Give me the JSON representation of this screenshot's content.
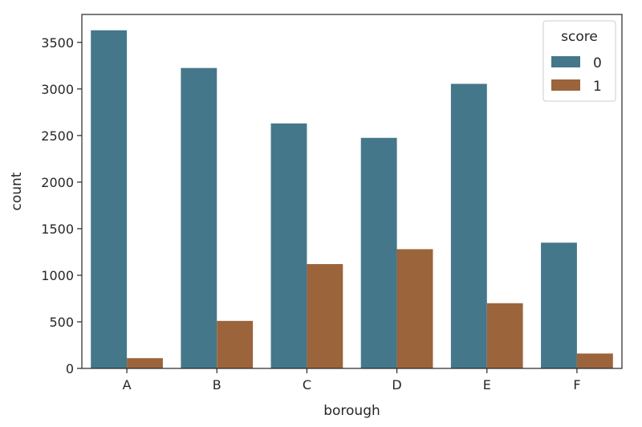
{
  "chart_data": {
    "type": "bar",
    "categories": [
      "A",
      "B",
      "C",
      "D",
      "E",
      "F"
    ],
    "series": [
      {
        "name": "0",
        "values": [
          3630,
          3225,
          2630,
          2475,
          3055,
          1350
        ],
        "color": "#44778a"
      },
      {
        "name": "1",
        "values": [
          110,
          510,
          1120,
          1280,
          700,
          160
        ],
        "color": "#9b643b"
      }
    ],
    "xlabel": "borough",
    "ylabel": "count",
    "ylim": [
      0,
      3800
    ],
    "yticks": [
      0,
      500,
      1000,
      1500,
      2000,
      2500,
      3000,
      3500
    ],
    "legend": {
      "title": "score",
      "placement": "top-right"
    },
    "grid": false
  }
}
